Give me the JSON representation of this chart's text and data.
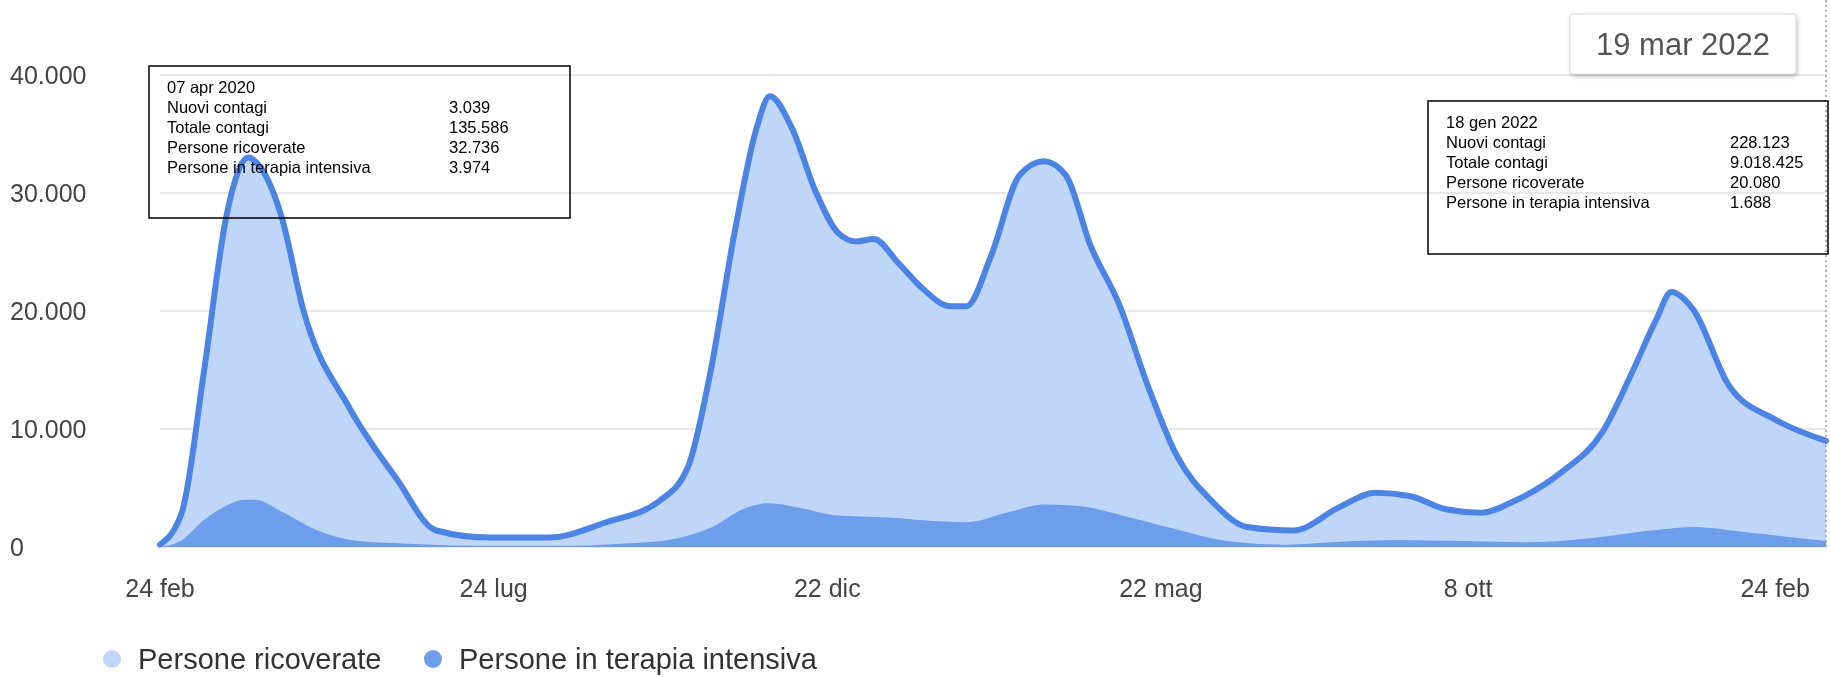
{
  "chart_data": {
    "type": "area",
    "x": [
      "2020-02-24",
      "2020-03-05",
      "2020-03-15",
      "2020-03-25",
      "2020-04-04",
      "2020-04-07",
      "2020-04-19",
      "2020-04-29",
      "2020-05-20",
      "2020-06-10",
      "2020-06-28",
      "2020-07-22",
      "2020-08-18",
      "2020-09-13",
      "2020-10-07",
      "2020-10-20",
      "2020-10-30",
      "2020-11-10",
      "2020-11-20",
      "2020-11-26",
      "2020-12-06",
      "2020-12-17",
      "2020-12-27",
      "2021-01-04",
      "2021-01-12",
      "2021-01-23",
      "2021-02-02",
      "2021-02-16",
      "2021-02-23",
      "2021-03-06",
      "2021-03-19",
      "2021-03-30",
      "2021-04-09",
      "2021-04-20",
      "2021-05-03",
      "2021-05-16",
      "2021-05-29",
      "2021-06-14",
      "2021-06-30",
      "2021-07-21",
      "2021-08-11",
      "2021-08-27",
      "2021-09-12",
      "2021-09-28",
      "2021-10-14",
      "2021-10-29",
      "2021-11-19",
      "2021-12-08",
      "2021-12-21",
      "2022-01-01",
      "2022-01-08",
      "2022-01-18",
      "2022-02-03",
      "2022-02-24",
      "2022-03-19"
    ],
    "series": [
      {
        "name": "Persone ricoverate",
        "color": "#c0d6f9",
        "values": [
          200,
          3000,
          15000,
          28000,
          33000,
          32700,
          28000,
          20000,
          11700,
          5800,
          1400,
          800,
          800,
          2100,
          3900,
          6800,
          14700,
          26600,
          35500,
          38200,
          35500,
          30000,
          26600,
          25900,
          26100,
          24100,
          22100,
          20400,
          20400,
          24600,
          31500,
          32700,
          31500,
          25600,
          20600,
          13700,
          7800,
          3900,
          1700,
          1400,
          3400,
          4600,
          4300,
          3200,
          2900,
          3900,
          6300,
          9800,
          14700,
          19200,
          21600,
          20100,
          13700,
          10800,
          9000
        ]
      },
      {
        "name": "Persone in terapia intensiva",
        "color": "#6d9eeb",
        "x": [
          "2020-02-24",
          "2020-03-05",
          "2020-03-15",
          "2020-03-25",
          "2020-04-02",
          "2020-04-07",
          "2020-04-19",
          "2020-05-04",
          "2020-05-24",
          "2020-06-13",
          "2020-07-23",
          "2020-08-22",
          "2020-09-21",
          "2020-10-11",
          "2020-10-31",
          "2020-11-15",
          "2020-11-25",
          "2020-12-10",
          "2020-12-25",
          "2021-01-19",
          "2021-02-08",
          "2021-02-23",
          "2021-03-15",
          "2021-03-30",
          "2021-04-14",
          "2021-05-04",
          "2021-05-29",
          "2021-06-18",
          "2021-07-18",
          "2021-08-17",
          "2021-09-06",
          "2021-10-06",
          "2021-11-05",
          "2021-12-05",
          "2022-01-04",
          "2022-01-18",
          "2022-02-13",
          "2022-03-19"
        ],
        "values": [
          0,
          600,
          2300,
          3500,
          4000,
          4000,
          3000,
          1500,
          500,
          300,
          100,
          100,
          300,
          600,
          1700,
          3300,
          3700,
          3300,
          2700,
          2500,
          2200,
          2100,
          3000,
          3600,
          3500,
          2700,
          1500,
          600,
          200,
          500,
          600,
          500,
          400,
          800,
          1500,
          1700,
          1200,
          500
        ]
      }
    ],
    "xlim": [
      "2020-02-24",
      "2022-03-19"
    ],
    "xticks": [
      {
        "value": "2020-02-24",
        "label": "24 feb"
      },
      {
        "value": "2020-07-24",
        "label": "24 lug"
      },
      {
        "value": "2020-12-22",
        "label": "22 dic"
      },
      {
        "value": "2021-05-22",
        "label": "22 mag"
      },
      {
        "value": "2021-10-08",
        "label": "8 ott"
      },
      {
        "value": "2022-02-24",
        "label": "24 feb"
      }
    ],
    "ylim": [
      0,
      40000
    ],
    "yticks": [
      {
        "value": 0,
        "label": "0"
      },
      {
        "value": 10000,
        "label": "10.000"
      },
      {
        "value": 20000,
        "label": "20.000"
      },
      {
        "value": 30000,
        "label": "30.000"
      },
      {
        "value": 40000,
        "label": "40.000"
      }
    ],
    "grid": "y",
    "legend": "bottom left",
    "ref_lines": [
      {
        "axis": "x",
        "value": "2022-03-19",
        "label": "19 mar 2022",
        "line_style": "dotted",
        "color": "#999999"
      }
    ],
    "annotations": [
      "07 apr 2020\nNuovi contagi\t3.039\nTotale contagi\t135.586\nPersone ricoverate\t32.736\nPersone in terapia intensiva\t3.974",
      "18 gen 2022\nNuovi contagi\t228.123\nTotale contagi\t9.018.425\nPersone ricoverate\t20.080\nPersone in terapia intensiva\t1.688"
    ]
  }
}
